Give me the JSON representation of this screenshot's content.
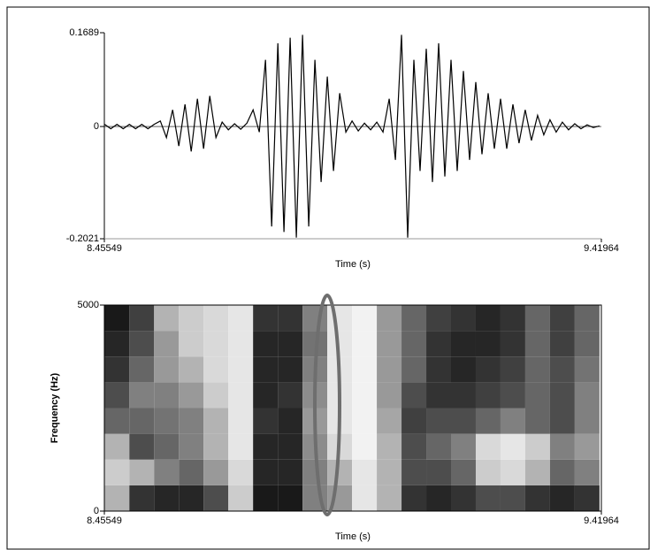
{
  "chart_data": [
    {
      "type": "line",
      "xlabel": "Time (s)",
      "color": "#000000",
      "xlim": [
        8.45549,
        9.41964
      ],
      "ylim": [
        -0.2021,
        0.1689
      ],
      "xticks": [
        8.45549,
        9.41964
      ],
      "yticks": [
        -0.2021,
        0,
        0.1689
      ],
      "x": [
        8.456,
        8.468,
        8.48,
        8.492,
        8.504,
        8.516,
        8.528,
        8.54,
        8.552,
        8.564,
        8.576,
        8.588,
        8.6,
        8.612,
        8.624,
        8.636,
        8.648,
        8.66,
        8.672,
        8.684,
        8.696,
        8.708,
        8.72,
        8.732,
        8.744,
        8.756,
        8.768,
        8.78,
        8.792,
        8.804,
        8.816,
        8.828,
        8.84,
        8.852,
        8.864,
        8.876,
        8.888,
        8.9,
        8.912,
        8.924,
        8.936,
        8.948,
        8.96,
        8.972,
        8.984,
        8.996,
        9.008,
        9.02,
        9.032,
        9.044,
        9.056,
        9.068,
        9.08,
        9.092,
        9.104,
        9.116,
        9.128,
        9.14,
        9.152,
        9.164,
        9.176,
        9.188,
        9.2,
        9.212,
        9.224,
        9.236,
        9.248,
        9.26,
        9.272,
        9.284,
        9.296,
        9.308,
        9.32,
        9.332,
        9.344,
        9.356,
        9.368,
        9.38,
        9.392,
        9.404,
        9.416
      ],
      "values": [
        0.004,
        -0.004,
        0.004,
        -0.004,
        0.004,
        -0.004,
        0.004,
        -0.004,
        0.004,
        0.01,
        -0.02,
        0.03,
        -0.035,
        0.04,
        -0.045,
        0.05,
        -0.04,
        0.055,
        -0.02,
        0.008,
        -0.006,
        0.005,
        -0.005,
        0.006,
        0.03,
        -0.01,
        0.12,
        -0.18,
        0.15,
        -0.19,
        0.16,
        -0.2,
        0.165,
        -0.18,
        0.12,
        -0.1,
        0.09,
        -0.08,
        0.06,
        -0.01,
        0.01,
        -0.008,
        0.006,
        -0.006,
        0.008,
        -0.01,
        0.05,
        -0.06,
        0.165,
        -0.2,
        0.12,
        -0.08,
        0.14,
        -0.1,
        0.15,
        -0.09,
        0.12,
        -0.08,
        0.1,
        -0.06,
        0.08,
        -0.05,
        0.06,
        -0.04,
        0.05,
        -0.04,
        0.04,
        -0.03,
        0.03,
        -0.025,
        0.02,
        -0.015,
        0.012,
        -0.01,
        0.008,
        -0.006,
        0.005,
        -0.004,
        0.003,
        -0.002,
        0.001
      ]
    },
    {
      "type": "heatmap",
      "xlabel": "Time (s)",
      "ylabel": "Frequency (Hz)",
      "xlim": [
        8.45549,
        9.41964
      ],
      "ylim": [
        0,
        5000
      ],
      "xticks": [
        8.45549,
        9.41964
      ],
      "yticks": [
        0,
        5000
      ],
      "x": [
        8.48,
        8.528,
        8.576,
        8.624,
        8.672,
        8.72,
        8.768,
        8.816,
        8.864,
        8.912,
        8.96,
        9.008,
        9.056,
        9.104,
        9.152,
        9.2,
        9.248,
        9.296,
        9.344,
        9.392
      ],
      "y": [
        312.5,
        937.5,
        1562.5,
        2187.5,
        2812.5,
        3437.5,
        4062.5,
        4687.5
      ],
      "values": [
        [
          30,
          80,
          85,
          85,
          70,
          20,
          90,
          90,
          50,
          40,
          10,
          30,
          80,
          85,
          80,
          70,
          70,
          80,
          85,
          80
        ],
        [
          20,
          30,
          50,
          60,
          40,
          15,
          85,
          85,
          50,
          30,
          10,
          30,
          70,
          70,
          60,
          20,
          15,
          30,
          60,
          50
        ],
        [
          30,
          70,
          60,
          50,
          30,
          10,
          85,
          85,
          45,
          15,
          5,
          30,
          70,
          60,
          50,
          15,
          10,
          20,
          50,
          40
        ],
        [
          60,
          60,
          55,
          50,
          30,
          10,
          80,
          85,
          40,
          10,
          5,
          35,
          75,
          70,
          70,
          60,
          50,
          60,
          70,
          50
        ],
        [
          70,
          50,
          50,
          40,
          20,
          10,
          85,
          80,
          45,
          10,
          5,
          40,
          70,
          80,
          80,
          75,
          70,
          60,
          70,
          50
        ],
        [
          80,
          60,
          40,
          30,
          15,
          10,
          85,
          85,
          50,
          10,
          5,
          40,
          60,
          80,
          85,
          80,
          75,
          60,
          70,
          55
        ],
        [
          85,
          70,
          40,
          20,
          15,
          10,
          85,
          85,
          55,
          10,
          5,
          40,
          60,
          80,
          85,
          85,
          80,
          60,
          75,
          60
        ],
        [
          90,
          75,
          30,
          20,
          15,
          10,
          80,
          80,
          50,
          10,
          5,
          40,
          60,
          75,
          80,
          85,
          80,
          60,
          75,
          60
        ]
      ]
    }
  ]
}
